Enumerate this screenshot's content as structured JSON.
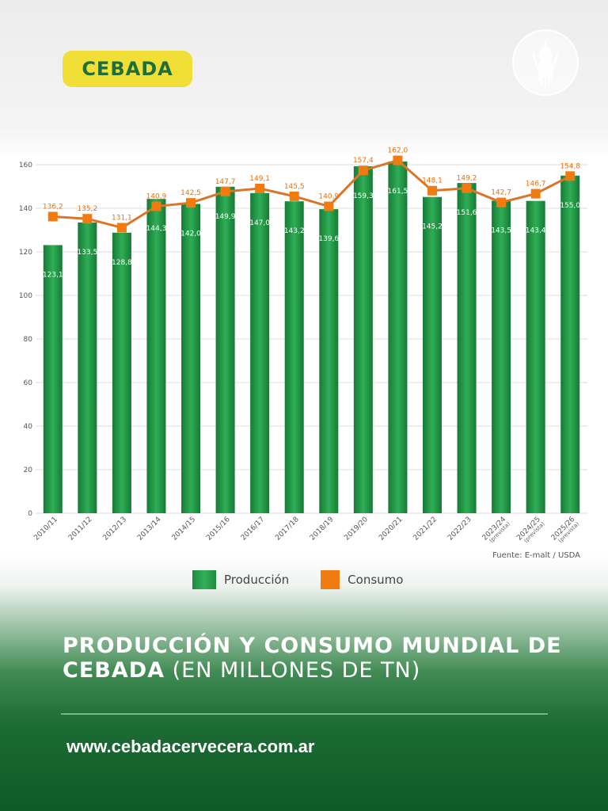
{
  "badge": {
    "label": "CEBADA"
  },
  "logo": {
    "icon": "wheat-icon"
  },
  "source": "Fuente: E-malt / USDA",
  "legend": {
    "production": "Producción",
    "consumption": "Consumo"
  },
  "title": {
    "bold": "PRODUCCIÓN Y CONSUMO MUNDIAL DE CEBADA",
    "light": "(EN MILLONES DE TN)"
  },
  "website": "www.cebadacervecera.com.ar",
  "colors": {
    "bar": "#1e8a40",
    "line": "#f07b10",
    "badge": "#f1df38"
  },
  "chart_data": {
    "type": "bar",
    "categories": [
      "2010/11",
      "2011/12",
      "2012/13",
      "2013/14",
      "2014/15",
      "2015/16",
      "2016/17",
      "2017/18",
      "2018/19",
      "2019/20",
      "2020/21",
      "2021/22",
      "2022/23",
      "2023/24 (prevista)",
      "2024/25 (prevista)",
      "2025/26 (prevista)"
    ],
    "series": [
      {
        "name": "Producción",
        "type": "bar",
        "values": [
          123.1,
          133.5,
          128.8,
          144.3,
          142.0,
          149.9,
          147.0,
          143.2,
          139.6,
          159.3,
          161.5,
          145.2,
          151.6,
          143.5,
          143.4,
          155.0
        ],
        "labels": [
          "123,1",
          "133,5",
          "128,8",
          "144,3",
          "142,0",
          "149,9",
          "147,0",
          "143,2",
          "139,6",
          "159,3",
          "161,5",
          "145,2",
          "151,6",
          "143,5",
          "143,4",
          "155,0"
        ]
      },
      {
        "name": "Consumo",
        "type": "line",
        "values": [
          136.2,
          135.2,
          131.1,
          140.9,
          142.5,
          147.7,
          149.1,
          145.5,
          140.9,
          157.4,
          162.0,
          148.1,
          149.2,
          142.7,
          146.7,
          154.8
        ],
        "labels": [
          "136,2",
          "135,2",
          "131,1",
          "140,9",
          "142,5",
          "147,7",
          "149,1",
          "145,5",
          "140,9",
          "157,4",
          "162,0",
          "148,1",
          "149,2",
          "142,7",
          "146,7",
          "154,8"
        ]
      }
    ],
    "ylim": [
      0,
      160
    ],
    "yticks": [
      0,
      20,
      40,
      60,
      80,
      100,
      120,
      140,
      160
    ],
    "grid": true,
    "legend": "bottom"
  }
}
